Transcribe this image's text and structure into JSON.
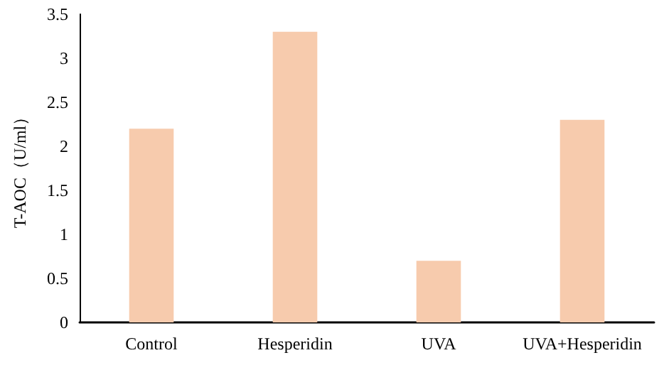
{
  "chart_data": {
    "type": "bar",
    "ylabel": "T-AOC（U/ml）",
    "categories": [
      "Control",
      "Hesperidin",
      "UVA",
      "UVA+Hesperidin"
    ],
    "values": [
      2.2,
      3.3,
      0.7,
      2.3
    ],
    "color": "#f7cbad",
    "ylim": [
      0,
      3.5
    ],
    "yticks": [
      0,
      0.5,
      1,
      1.5,
      2,
      2.5,
      3,
      3.5
    ]
  }
}
